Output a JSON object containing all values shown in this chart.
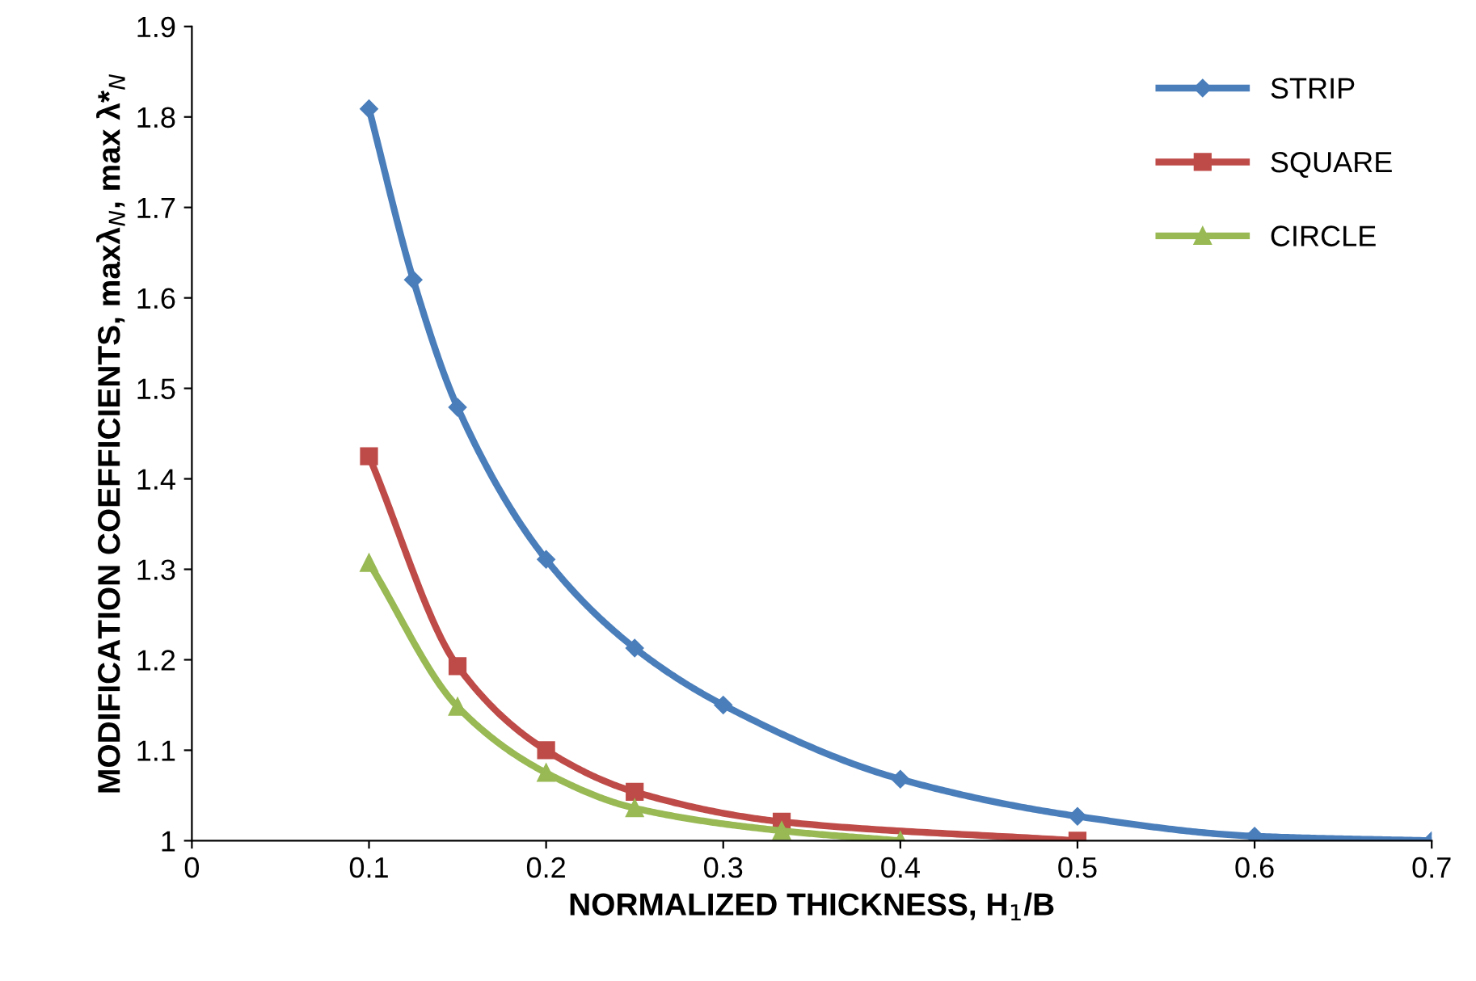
{
  "chart_data": {
    "type": "line",
    "xlabel": "NORMALIZED THICKNESS, H$_{1}$/B",
    "ylabel": "MODIFICATION COEFFICIENTS, maxλ$_{N}$, max λ*$_{N}$",
    "xlim": [
      0,
      0.7
    ],
    "xticks": [
      0,
      0.1,
      0.2,
      0.3,
      0.4,
      0.5,
      0.6,
      0.7
    ],
    "ylim": [
      1,
      1.9
    ],
    "yticks": [
      1,
      1.1,
      1.2,
      1.3,
      1.4,
      1.5,
      1.6,
      1.7,
      1.8,
      1.9
    ],
    "grid": false,
    "legend": "top right",
    "series": [
      {
        "name": "STRIP",
        "color": "#4a7ebb",
        "marker": "diamond",
        "x": [
          0.1,
          0.125,
          0.15,
          0.2,
          0.25,
          0.3,
          0.4,
          0.5,
          0.6,
          0.7
        ],
        "values": [
          1.809,
          1.62,
          1.479,
          1.311,
          1.213,
          1.15,
          1.068,
          1.027,
          1.005,
          1.0
        ]
      },
      {
        "name": "SQUARE",
        "color": "#be4b48",
        "marker": "square",
        "x": [
          0.1,
          0.15,
          0.2,
          0.25,
          0.333,
          0.5
        ],
        "values": [
          1.425,
          1.193,
          1.1,
          1.054,
          1.021,
          1.0
        ]
      },
      {
        "name": "CIRCLE",
        "color": "#98b954",
        "marker": "triangle",
        "x": [
          0.1,
          0.15,
          0.2,
          0.25,
          0.333,
          0.4
        ],
        "values": [
          1.307,
          1.148,
          1.075,
          1.036,
          1.011,
          1.0
        ]
      }
    ]
  }
}
